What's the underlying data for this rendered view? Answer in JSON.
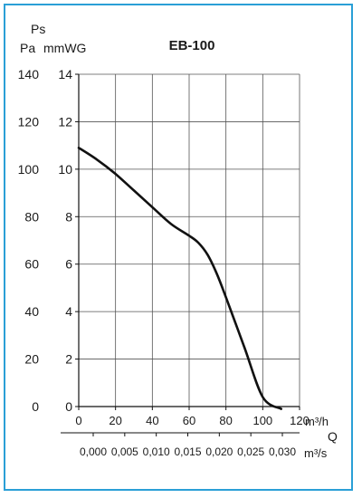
{
  "chart_data": {
    "type": "line",
    "title": "EB-100",
    "y_label_top": "Ps",
    "y_unit_left": "Pa",
    "y_unit_right": "mmWG",
    "x_unit_top": "m³/h",
    "x_label_q": "Q",
    "x_unit_bottom": "m³/s",
    "pa_ticks": [
      "0",
      "20",
      "40",
      "60",
      "80",
      "100",
      "120",
      "140"
    ],
    "mmwg_ticks": [
      "0",
      "2",
      "4",
      "6",
      "8",
      "10",
      "12",
      "14"
    ],
    "x_ticks_m3h": [
      "0",
      "20",
      "40",
      "60",
      "80",
      "100",
      "120"
    ],
    "x_ticks_m3s": [
      "0,000",
      "0,005",
      "0,010",
      "0,015",
      "0,020",
      "0,025",
      "0,030"
    ],
    "xlim": [
      0,
      120
    ],
    "ylim": [
      0,
      14
    ],
    "grid": true,
    "series": [
      {
        "x": [
          0,
          10,
          20,
          30,
          40,
          50,
          60,
          65,
          70,
          75,
          80,
          90,
          100,
          110
        ],
        "y": [
          10.9,
          10.4,
          9.8,
          9.1,
          8.4,
          7.7,
          7.2,
          6.9,
          6.4,
          5.6,
          4.6,
          2.5,
          0.4,
          -0.1
        ]
      }
    ],
    "colors": {
      "frame": "#2a9fd6",
      "curve": "#111111",
      "grid": "#555555"
    }
  }
}
